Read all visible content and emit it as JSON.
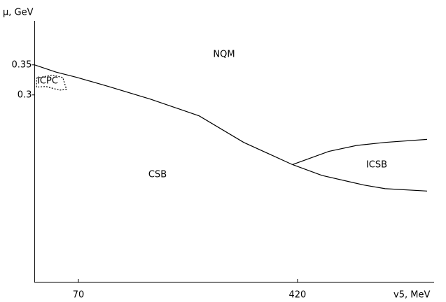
{
  "chart_data": {
    "type": "line",
    "x_label": "v5, MeV",
    "y_label": "μ, GeV",
    "annotations": [
      "NQM",
      "ICPC",
      "CSB",
      "ICSB"
    ],
    "xlim": [
      0,
      627
    ],
    "ylim": [
      -0.012,
      0.423
    ],
    "xticks": [
      70,
      420
    ],
    "yticks": [
      0.3,
      0.35
    ],
    "series": [
      {
        "color": "#000000",
        "dash": "solid",
        "x": [
          0,
          34,
          68,
          118,
          185,
          263,
          334,
          412
        ],
        "values": [
          0.35,
          0.338,
          0.329,
          0.314,
          0.293,
          0.265,
          0.221,
          0.184
        ]
      },
      {
        "color": "#000000",
        "dash": "solid",
        "x": [
          412,
          470,
          515,
          560,
          627
        ],
        "values": [
          0.184,
          0.206,
          0.216,
          0.221,
          0.226
        ]
      },
      {
        "color": "#000000",
        "dash": "solid",
        "x": [
          412,
          459,
          526,
          560,
          627
        ],
        "values": [
          0.184,
          0.166,
          0.15,
          0.144,
          0.14
        ]
      },
      {
        "color": "#000000",
        "dash": "dotted",
        "x": [
          3,
          28,
          45,
          51,
          40,
          18,
          3,
          3
        ],
        "values": [
          0.328,
          0.333,
          0.329,
          0.309,
          0.308,
          0.314,
          0.313,
          0.328
        ]
      }
    ]
  }
}
